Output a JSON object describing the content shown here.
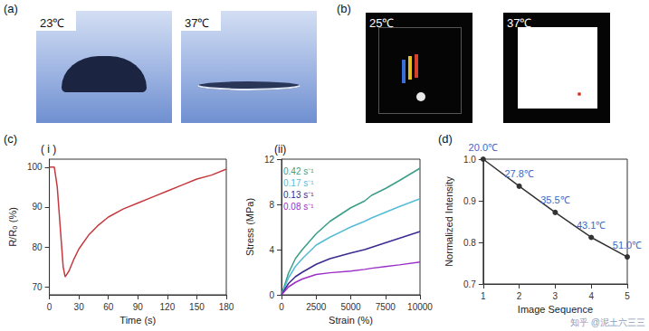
{
  "figure": {
    "panels": [
      {
        "label": "(a)",
        "photos": [
          "23℃",
          "37℃"
        ]
      },
      {
        "label": "(b)",
        "photos": [
          "25℃",
          "37℃"
        ]
      },
      {
        "label": "(c)"
      },
      {
        "label": "(d)"
      }
    ],
    "watermark": "知乎 @泥土六三三"
  },
  "chart_data": [
    {
      "type": "line",
      "title": "( i )",
      "x_label": "Time (s)",
      "y_label": "R/R₀ (%)",
      "x": [
        0,
        5,
        8,
        11,
        14,
        16,
        20,
        25,
        30,
        40,
        50,
        60,
        75,
        90,
        105,
        120,
        135,
        150,
        165,
        180
      ],
      "values": [
        100,
        100,
        95,
        85,
        75,
        72.5,
        74,
        77,
        79.5,
        83,
        85.5,
        87.5,
        89.5,
        91,
        92.5,
        94,
        95.5,
        97,
        98,
        99.5
      ],
      "color": "#c43a3f",
      "marker": "none",
      "line_style": "solid",
      "xlim": [
        0,
        180
      ],
      "xticks": [
        0,
        30,
        60,
        90,
        120,
        150,
        180
      ],
      "ylim": [
        68,
        102
      ],
      "yticks": [
        70,
        80,
        90,
        100
      ],
      "grid": false
    },
    {
      "type": "line",
      "title": "(ii)",
      "x_label": "Strain (%)",
      "y_label": "Stress (MPa)",
      "x": [
        0,
        500,
        1000,
        1500,
        2500,
        3500,
        5000,
        6000,
        6500,
        7500,
        8500,
        10000
      ],
      "series": [
        {
          "name": "0.42 s⁻¹",
          "color": "#3a9e86",
          "values": [
            0,
            1.9,
            3.2,
            4.0,
            5.4,
            6.5,
            7.7,
            8.3,
            8.8,
            9.4,
            10.1,
            11.2
          ]
        },
        {
          "name": "0.17 s⁻¹",
          "color": "#55bcd8",
          "values": [
            0,
            1.5,
            2.5,
            3.2,
            4.4,
            5.1,
            6.0,
            6.5,
            6.8,
            7.3,
            7.8,
            8.5
          ]
        },
        {
          "name": "0.13 s⁻¹",
          "color": "#3b2a8f",
          "values": [
            0,
            1.0,
            1.6,
            2.0,
            2.7,
            3.2,
            3.7,
            4.0,
            4.2,
            4.6,
            5.0,
            5.6
          ]
        },
        {
          "name": "0.08 s⁻¹",
          "color": "#9b30c8",
          "values": [
            0,
            0.7,
            1.1,
            1.4,
            1.8,
            1.95,
            2.1,
            2.25,
            2.35,
            2.5,
            2.65,
            2.9
          ]
        }
      ],
      "marker": "none",
      "line_style": "solid",
      "legend": "upper left",
      "xlim": [
        0,
        10000
      ],
      "xticks": [
        0,
        2500,
        5000,
        7500,
        10000
      ],
      "ylim": [
        0,
        12
      ],
      "yticks": [
        0,
        4,
        8,
        12
      ],
      "grid": false
    },
    {
      "type": "line",
      "x_label": "Image Sequence",
      "y_label": "Normalized Intensity",
      "x": [
        1,
        2,
        3,
        4,
        5
      ],
      "values": [
        1.0,
        0.935,
        0.872,
        0.812,
        0.765
      ],
      "annotations": [
        "20.0℃",
        "27.8℃",
        "35.5℃",
        "43.1℃",
        "51.0℃"
      ],
      "color": "#333333",
      "marker": "circle",
      "line_style": "solid",
      "xlim": [
        1,
        5
      ],
      "xticks": [
        1,
        2,
        3,
        4,
        5
      ],
      "ylim": [
        0.7,
        1.0
      ],
      "yticks": [
        0.7,
        0.8,
        0.9,
        {
          "value": 1.0,
          "label": "1.0"
        }
      ],
      "grid": false
    }
  ]
}
